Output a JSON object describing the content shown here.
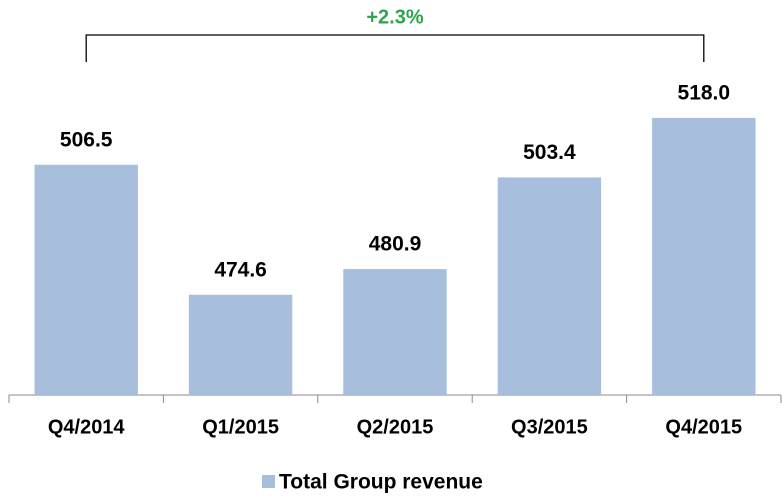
{
  "chart_data": {
    "type": "bar",
    "categories": [
      "Q4/2014",
      "Q1/2015",
      "Q2/2015",
      "Q3/2015",
      "Q4/2015"
    ],
    "series": [
      {
        "name": "Total Group revenue",
        "color": "#a7bfdd",
        "values": [
          506.5,
          474.6,
          480.9,
          503.4,
          518.0
        ],
        "value_labels": [
          "506.5",
          "474.6",
          "480.9",
          "503.4",
          "518.0"
        ]
      }
    ],
    "ylim": [
      450,
      550
    ],
    "annotation": "+2.3%",
    "annotation_color": "#2ca64a"
  }
}
